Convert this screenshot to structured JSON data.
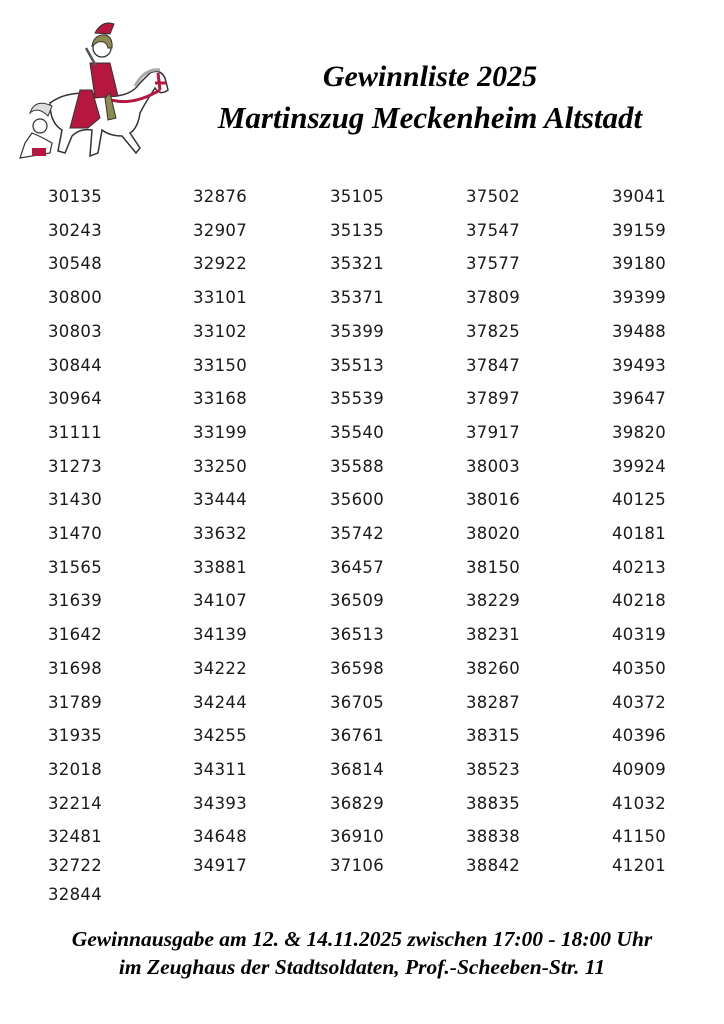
{
  "header": {
    "title_line1": "Gewinnliste 2025",
    "title_line2": "Martinszug Meckenheim Altstadt"
  },
  "numbers": {
    "columns": [
      [
        "30135",
        "30243",
        "30548",
        "30800",
        "30803",
        "30844",
        "30964",
        "31111",
        "31273",
        "31430",
        "31470",
        "31565",
        "31639",
        "31642",
        "31698",
        "31789",
        "31935",
        "32018",
        "32214",
        "32481",
        "32722",
        "32844"
      ],
      [
        "32876",
        "32907",
        "32922",
        "33101",
        "33102",
        "33150",
        "33168",
        "33199",
        "33250",
        "33444",
        "33632",
        "33881",
        "34107",
        "34139",
        "34222",
        "34244",
        "34255",
        "34311",
        "34393",
        "34648",
        "34917"
      ],
      [
        "35105",
        "35135",
        "35321",
        "35371",
        "35399",
        "35513",
        "35539",
        "35540",
        "35588",
        "35600",
        "35742",
        "36457",
        "36509",
        "36513",
        "36598",
        "36705",
        "36761",
        "36814",
        "36829",
        "36910",
        "37106"
      ],
      [
        "37502",
        "37547",
        "37577",
        "37809",
        "37825",
        "37847",
        "37897",
        "37917",
        "38003",
        "38016",
        "38020",
        "38150",
        "38229",
        "38231",
        "38260",
        "38287",
        "38315",
        "38523",
        "38835",
        "38838",
        "38842"
      ],
      [
        "39041",
        "39159",
        "39180",
        "39399",
        "39488",
        "39493",
        "39647",
        "39820",
        "39924",
        "40125",
        "40181",
        "40213",
        "40218",
        "40319",
        "40350",
        "40372",
        "40396",
        "40909",
        "41032",
        "41150",
        "41201"
      ]
    ]
  },
  "footer": {
    "line1": "Gewinnausgabe am 12. & 14.11.2025 zwischen 17:00 - 18:00 Uhr",
    "line2": "im Zeughaus der Stadtsoldaten, Prof.-Scheeben-Str. 11"
  },
  "colors": {
    "accent": "#b5173f",
    "helmet": "#8f8a4e"
  },
  "logo": {
    "icon": "st-martin-on-horse-illustration"
  }
}
